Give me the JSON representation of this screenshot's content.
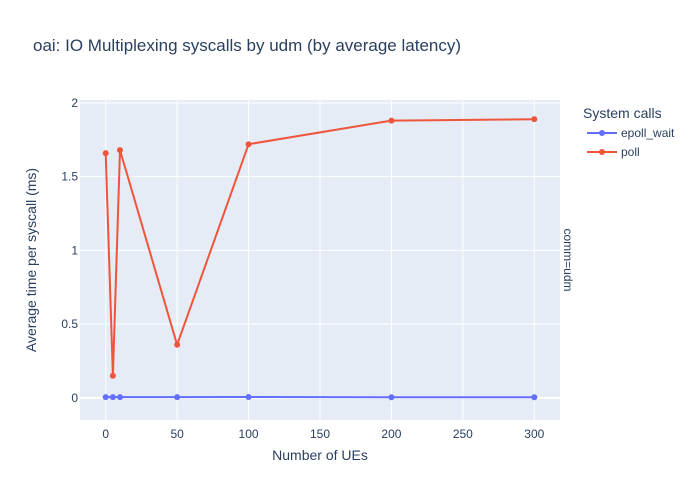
{
  "chart_data": {
    "type": "line",
    "title": "oai: IO Multiplexing syscalls by udm (by average latency)",
    "xlabel": "Number of UEs",
    "ylabel": "Average time per syscall (ms)",
    "facet_label": "comm=udm",
    "legend_title": "System calls",
    "legend_placement": "top-right",
    "grid": true,
    "xlim": [
      -18,
      318
    ],
    "ylim": [
      -0.15,
      2.02
    ],
    "x_ticks": [
      0,
      50,
      100,
      150,
      200,
      250,
      300
    ],
    "y_ticks": [
      0,
      0.5,
      1,
      1.5,
      2
    ],
    "y_tick_labels": [
      "0",
      "0.5",
      "1",
      "1.5",
      "2"
    ],
    "series": [
      {
        "name": "epoll_wait",
        "color": "#636efa",
        "x": [
          0,
          5,
          10,
          50,
          100,
          200,
          300
        ],
        "y": [
          0.005,
          0.005,
          0.005,
          0.005,
          0.006,
          0.004,
          0.004
        ]
      },
      {
        "name": "poll",
        "color": "#ef553b",
        "x": [
          0,
          5,
          10,
          50,
          100,
          200,
          300
        ],
        "y": [
          1.66,
          0.15,
          1.68,
          0.36,
          1.72,
          1.88,
          1.89
        ]
      }
    ]
  }
}
